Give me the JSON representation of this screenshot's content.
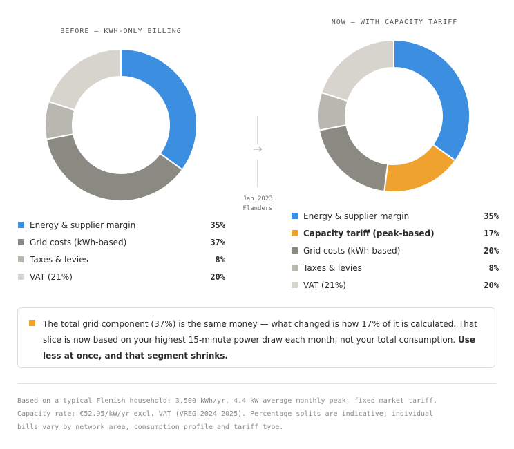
{
  "chart_data": [
    {
      "type": "pie",
      "title": "BEFORE — KWH-ONLY BILLING",
      "slices": [
        {
          "label": "Energy & supplier margin",
          "value": 35,
          "display": "35%",
          "color": "#3b8ee0"
        },
        {
          "label": "Grid costs (kWh-based)",
          "value": 37,
          "display": "37%",
          "color": "#8a8a82"
        },
        {
          "label": "Taxes & levies",
          "value": 8,
          "display": "8%",
          "color": "#b8b8b0"
        },
        {
          "label": "VAT (21%)",
          "value": 20,
          "display": "20%",
          "color": "#d6d4cc"
        }
      ]
    },
    {
      "type": "pie",
      "title": "NOW — WITH CAPACITY TARIFF",
      "slices": [
        {
          "label": "Energy & supplier margin",
          "value": 35,
          "display": "35%",
          "color": "#3b8ee0"
        },
        {
          "label": "Capacity tariff (peak-based)",
          "value": 17,
          "display": "17%",
          "color": "#f0a22e",
          "highlight": true
        },
        {
          "label": "Grid costs (kWh-based)",
          "value": 20,
          "display": "20%",
          "color": "#8a8a82"
        },
        {
          "label": "Taxes & levies",
          "value": 8,
          "display": "8%",
          "color": "#b8b8b0"
        },
        {
          "label": "VAT (21%)",
          "value": 20,
          "display": "20%",
          "color": "#d6d4cc"
        }
      ]
    }
  ],
  "transition": {
    "arrow": "→",
    "date": "Jan 2023",
    "region": "Flanders"
  },
  "callout": {
    "text_plain": "The total grid component (37%) is the same money — what changed is how 17% of it is calculated. That slice is now based on your highest 15-minute power draw each month, not your total consumption.",
    "text_bold": "Use less at once, and that segment shrinks.",
    "dot_color": "#f0a22e"
  },
  "footnote": {
    "line1": "Based on a typical Flemish household: 3,500 kWh/yr, 4.4 kW average monthly peak, fixed market tariff.",
    "line2": "Capacity rate: €52.95/kW/yr excl. VAT (VREG 2024–2025). Percentage splits are indicative; individual",
    "line3": "bills vary by network area, consumption profile and tariff type."
  }
}
